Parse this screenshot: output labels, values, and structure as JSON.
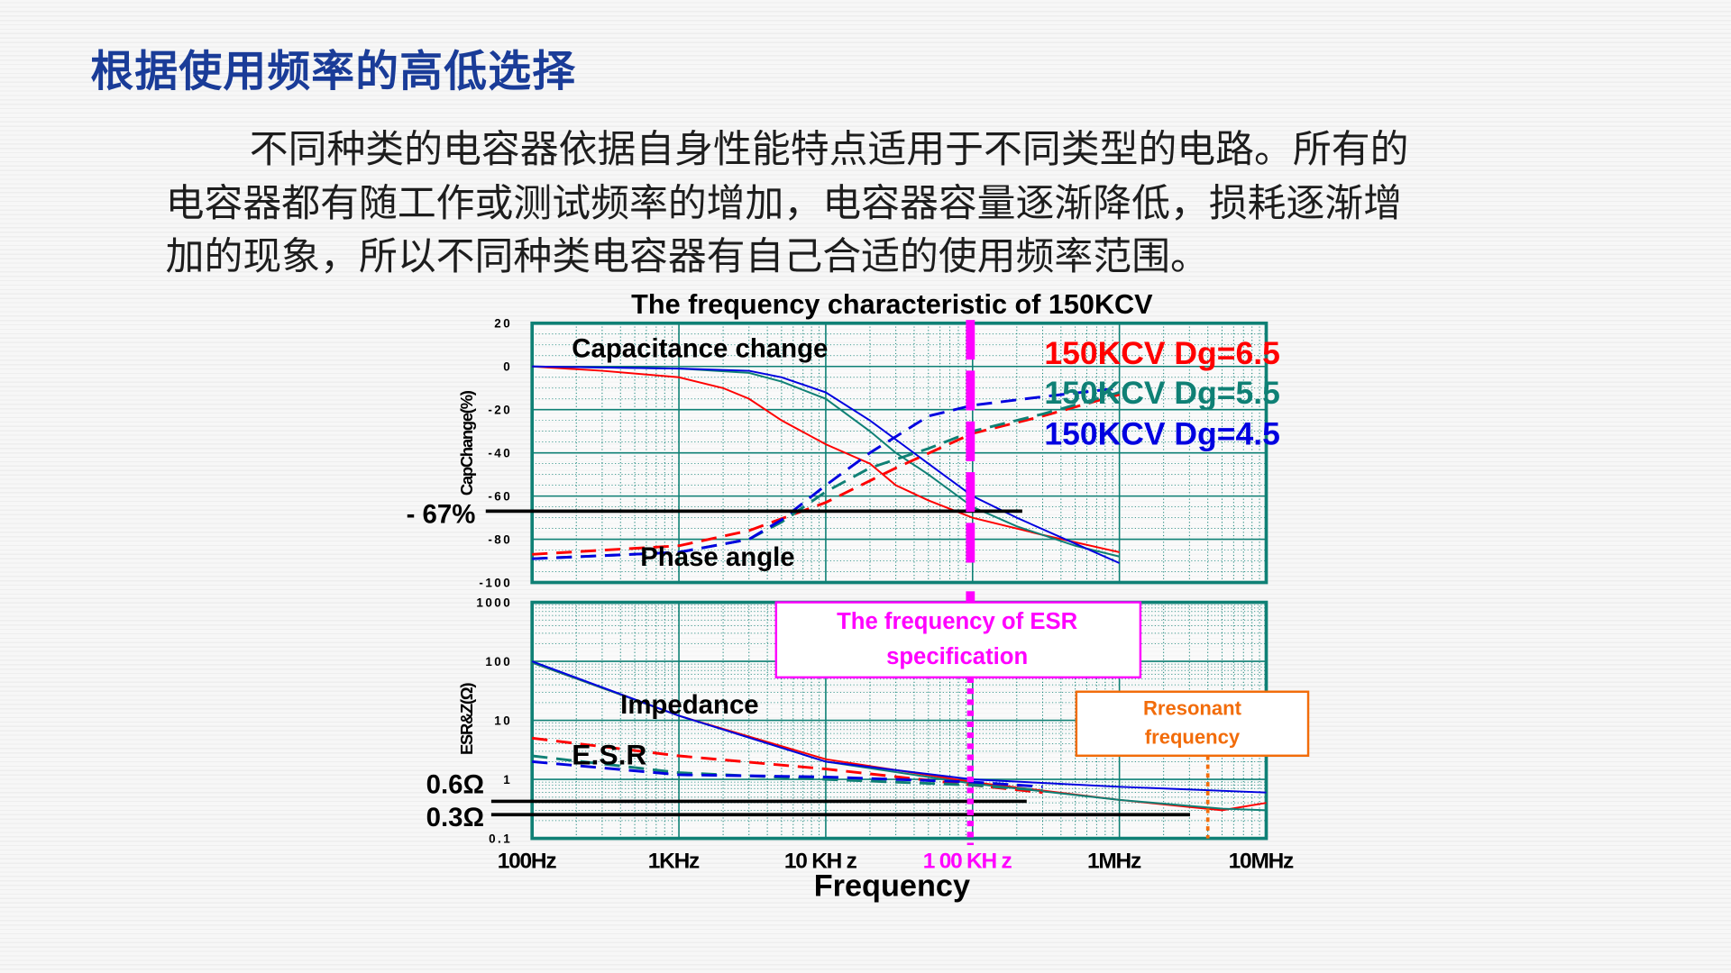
{
  "slide": {
    "title": "根据使用频率的高低选择",
    "paragraph_lines": [
      "不同种类的电容器依据自身性能特点适用于不同类型的电路。所有的",
      "电容器都有随工作或测试频率的增加，电容器容量逐渐降低，损耗逐渐增",
      "加的现象，所以不同种类电容器有自己合适的使用频率范围。"
    ]
  },
  "chart_data": {
    "type": "line",
    "title": "The frequency characteristic of 150KCV",
    "xlabel": "Frequency",
    "x_scale": "log",
    "xlim": [
      100,
      10000000
    ],
    "x_ticks": [
      {
        "value": 100,
        "label": "100Hz",
        "color": "#000000"
      },
      {
        "value": 1000,
        "label": "1KHz",
        "color": "#000000"
      },
      {
        "value": 10000,
        "label": "10 KH z",
        "color": "#000000"
      },
      {
        "value": 100000,
        "label": "1 00 KH z",
        "color": "#ff00ff"
      },
      {
        "value": 1000000,
        "label": "1MHz",
        "color": "#000000"
      },
      {
        "value": 10000000,
        "label": "10MHz",
        "color": "#000000"
      }
    ],
    "legend": {
      "placement": "top-right",
      "entries": [
        {
          "label": "150KCV Dg=6.5",
          "color": "#ff0000"
        },
        {
          "label": "150KCV Dg=5.5",
          "color": "#0f8075"
        },
        {
          "label": "150KCV Dg=4.5",
          "color": "#0000e0"
        }
      ]
    },
    "panels": [
      {
        "name": "capacitance-phase",
        "ylabel": "CapChange(%)",
        "ylim": [
          -100,
          20
        ],
        "y_ticks": [
          "20",
          "0",
          "-20",
          "-40",
          "-60",
          "-80",
          "-100"
        ],
        "y_tick_values": [
          20,
          0,
          -20,
          -40,
          -60,
          -80,
          -100
        ],
        "annotations": {
          "cap_label": "Capacitance change",
          "phase_label": "Phase angle",
          "ref_line_label": "- 67%",
          "ref_line_value": -67
        },
        "series": [
          {
            "name": "Cap change Dg=6.5",
            "color": "#ff0000",
            "dash": false,
            "x": [
              100,
              300,
              1000,
              2000,
              3000,
              5000,
              10000,
              20000,
              30000,
              50000,
              100000,
              300000,
              1000000
            ],
            "y": [
              0,
              -2,
              -5,
              -10,
              -15,
              -25,
              -36,
              -45,
              -55,
              -62,
              -70,
              -78,
              -86
            ]
          },
          {
            "name": "Cap change Dg=5.5",
            "color": "#0f8075",
            "dash": false,
            "x": [
              100,
              1000,
              3000,
              5000,
              10000,
              20000,
              30000,
              50000,
              100000,
              200000,
              500000,
              1000000
            ],
            "y": [
              0,
              -1,
              -3,
              -7,
              -15,
              -30,
              -40,
              -50,
              -65,
              -74,
              -83,
              -88
            ]
          },
          {
            "name": "Cap change Dg=4.5",
            "color": "#0000e0",
            "dash": false,
            "x": [
              100,
              1000,
              3000,
              5000,
              10000,
              20000,
              50000,
              100000,
              200000,
              500000,
              1000000
            ],
            "y": [
              0,
              -1,
              -2,
              -5,
              -12,
              -25,
              -45,
              -60,
              -70,
              -82,
              -91
            ]
          },
          {
            "name": "Phase angle Dg=6.5",
            "color": "#ff0000",
            "dash": true,
            "x": [
              100,
              1000,
              3000,
              10000,
              30000,
              100000,
              300000,
              1000000
            ],
            "y": [
              -87,
              -83,
              -76,
              -63,
              -47,
              -31,
              -23,
              -13
            ]
          },
          {
            "name": "Phase angle Dg=5.5",
            "color": "#0f8075",
            "dash": true,
            "x": [
              100,
              1000,
              3000,
              5000,
              10000,
              20000,
              50000,
              100000,
              300000,
              1000000
            ],
            "y": [
              -89,
              -86,
              -80,
              -72,
              -58,
              -47,
              -38,
              -30,
              -22,
              -12
            ]
          },
          {
            "name": "Phase angle Dg=4.5",
            "color": "#0000e0",
            "dash": true,
            "x": [
              100,
              1000,
              3000,
              5000,
              10000,
              20000,
              50000,
              100000,
              300000,
              1000000
            ],
            "y": [
              -89,
              -86,
              -80,
              -71,
              -55,
              -40,
              -23,
              -18,
              -14,
              -10
            ]
          }
        ]
      },
      {
        "name": "impedance-esr",
        "ylabel": "ESR&Z(Ω)",
        "y_scale": "log",
        "ylim": [
          0.1,
          1000
        ],
        "y_ticks": [
          "1000",
          "100",
          "10",
          "1",
          "0.1"
        ],
        "y_tick_values": [
          1000,
          100,
          10,
          1,
          0.1
        ],
        "annotations": {
          "impedance_label": "Impedance",
          "esr_label": "E.S.R",
          "ref_line_1_label": "0.6Ω",
          "ref_line_1_value": 0.6,
          "ref_line_2_label": "0.3Ω",
          "ref_line_2_value": 0.3
        },
        "series": [
          {
            "name": "Impedance Dg=6.5",
            "color": "#ff0000",
            "dash": false,
            "x": [
              100,
              1000,
              10000,
              100000,
              1000000,
              5000000,
              10000000
            ],
            "y": [
              95,
              12,
              2.2,
              0.9,
              0.45,
              0.3,
              0.4
            ]
          },
          {
            "name": "Impedance Dg=5.5",
            "color": "#0f8075",
            "dash": false,
            "x": [
              100,
              1000,
              10000,
              100000,
              1000000,
              5000000,
              10000000
            ],
            "y": [
              95,
              12,
              2,
              0.85,
              0.45,
              0.32,
              0.3
            ]
          },
          {
            "name": "Impedance Dg=4.5",
            "color": "#0000e0",
            "dash": false,
            "x": [
              100,
              1000,
              10000,
              100000,
              1000000,
              10000000
            ],
            "y": [
              100,
              12,
              2,
              1.0,
              0.75,
              0.6
            ]
          },
          {
            "name": "ESR Dg=6.5",
            "color": "#ff0000",
            "dash": true,
            "x": [
              100,
              1000,
              10000,
              100000,
              300000
            ],
            "y": [
              5,
              2.5,
              1.5,
              0.8,
              0.6
            ]
          },
          {
            "name": "ESR Dg=5.5",
            "color": "#0f8075",
            "dash": true,
            "x": [
              100,
              1000,
              10000,
              100000,
              300000
            ],
            "y": [
              2.5,
              1.3,
              1.0,
              0.8,
              0.65
            ]
          },
          {
            "name": "ESR Dg=4.5",
            "color": "#0000e0",
            "dash": true,
            "x": [
              100,
              1000,
              10000,
              100000,
              300000
            ],
            "y": [
              2,
              1.2,
              1.1,
              0.9,
              0.75
            ]
          }
        ]
      }
    ],
    "callouts": {
      "esr_spec": {
        "text_lines": [
          "The frequency of ESR",
          "specification"
        ],
        "frequency": 100000,
        "color": "#ff00ff"
      },
      "resonant": {
        "text_lines": [
          "Rresonant",
          "frequency"
        ],
        "frequency": 4000000,
        "color": "#f26c0a"
      }
    }
  }
}
